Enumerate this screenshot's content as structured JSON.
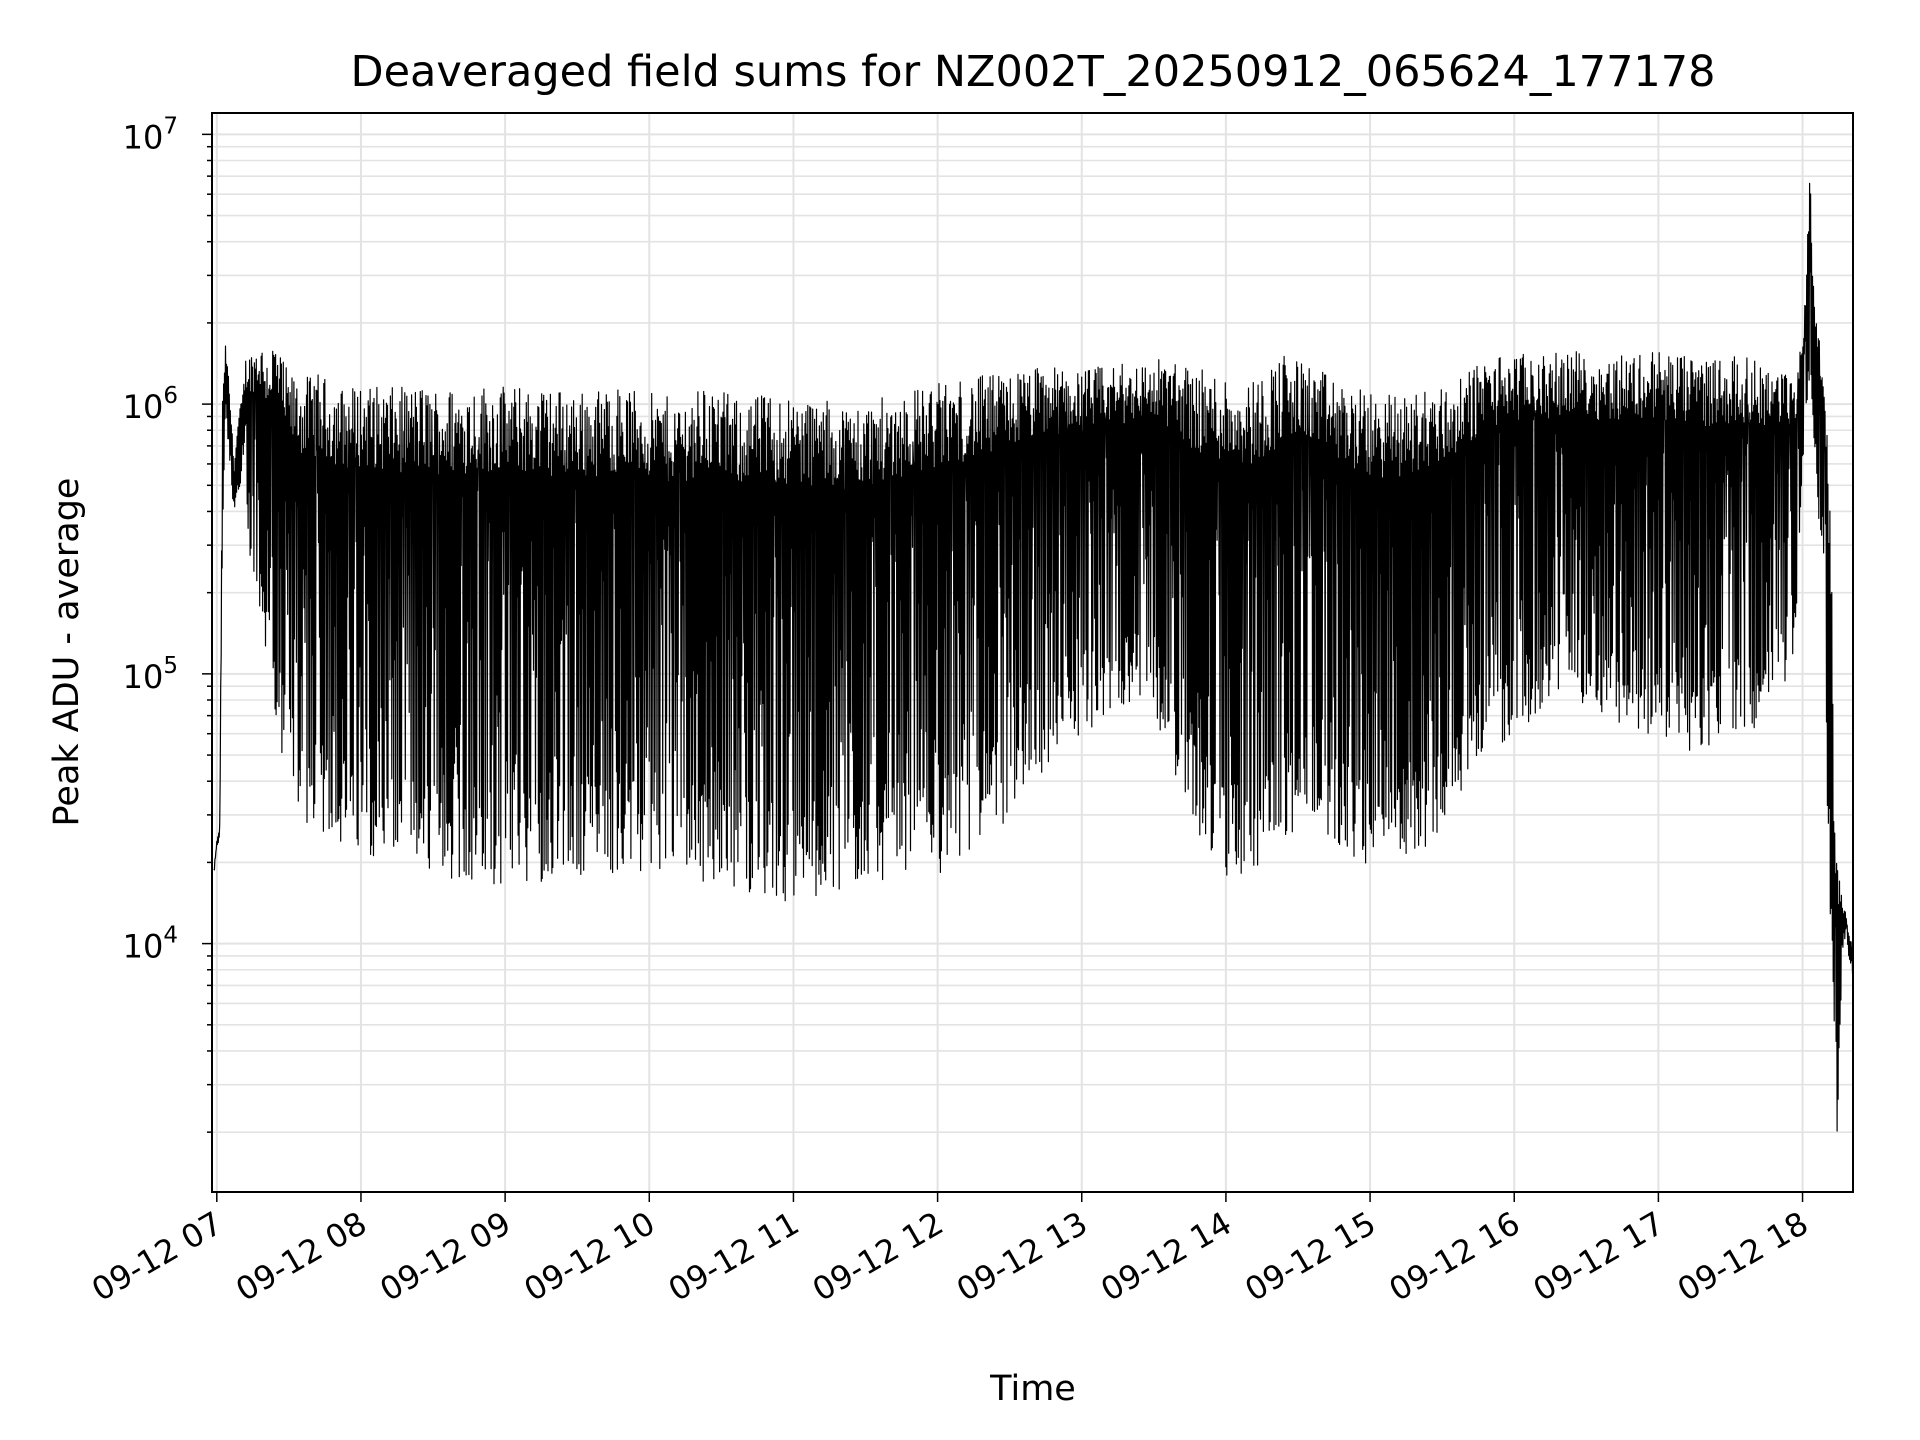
{
  "chart_data": {
    "type": "line",
    "title": "Deaveraged field sums for NZ002T_20250912_065624_177178",
    "xlabel": "Time",
    "ylabel": "Peak ADU - average",
    "yscale": "log",
    "ylim": [
      1200,
      12000000
    ],
    "xlim": [
      "09-12 06:58",
      "09-12 18:21"
    ],
    "grid": true,
    "legend": "none",
    "line_color": "#000000",
    "x_ticks": [
      "09-12 07",
      "09-12 08",
      "09-12 09",
      "09-12 10",
      "09-12 11",
      "09-12 12",
      "09-12 13",
      "09-12 14",
      "09-12 15",
      "09-12 16",
      "09-12 17",
      "09-12 18"
    ],
    "y_ticks": [
      {
        "value": 10000,
        "base": "10",
        "exp": "4"
      },
      {
        "value": 100000,
        "base": "10",
        "exp": "5"
      },
      {
        "value": 1000000,
        "base": "10",
        "exp": "6"
      },
      {
        "value": 10000000,
        "base": "10",
        "exp": "7"
      }
    ],
    "series": [
      {
        "hours": [
          6.98,
          7.0,
          7.02,
          7.04,
          7.06,
          7.08,
          7.1,
          7.12,
          7.15,
          7.18,
          7.2,
          7.25,
          7.3,
          7.35,
          7.4,
          7.45,
          7.5,
          7.6,
          7.7,
          7.8,
          7.9,
          8.0,
          8.2,
          8.4,
          8.6,
          8.8,
          9.0,
          9.2,
          9.4,
          9.6,
          9.8,
          10.0,
          10.2,
          10.4,
          10.6,
          10.8,
          11.0,
          11.2,
          11.4,
          11.6,
          11.8,
          12.0,
          12.2,
          12.4,
          12.6,
          12.8,
          13.0,
          13.2,
          13.4,
          13.6,
          13.8,
          14.0,
          14.2,
          14.4,
          14.6,
          14.8,
          15.0,
          15.2,
          15.4,
          15.6,
          15.8,
          16.0,
          16.2,
          16.4,
          16.6,
          16.8,
          17.0,
          17.2,
          17.4,
          17.6,
          17.8,
          17.95,
          18.0,
          18.02,
          18.05,
          18.08,
          18.12,
          18.16,
          18.2,
          18.22,
          18.24,
          18.26,
          18.28,
          18.3,
          18.32,
          18.35
        ],
        "upper": [
          19000,
          24000,
          27000,
          1050000,
          1650000,
          1300000,
          900000,
          600000,
          900000,
          1100000,
          1500000,
          1600000,
          1750000,
          1550000,
          1800000,
          1500000,
          1300000,
          1250000,
          1300000,
          1200000,
          1150000,
          1200000,
          1150000,
          1180000,
          1150000,
          1200000,
          1180000,
          1150000,
          1150000,
          1120000,
          1180000,
          1100000,
          1050000,
          1200000,
          1050000,
          1100000,
          1080000,
          1050000,
          1000000,
          1050000,
          1150000,
          1200000,
          1250000,
          1300000,
          1350000,
          1400000,
          1350000,
          1400000,
          1450000,
          1500000,
          1350000,
          1300000,
          1250000,
          1550000,
          1400000,
          1200000,
          1100000,
          1100000,
          1150000,
          1200000,
          1500000,
          1550000,
          1500000,
          1600000,
          1500000,
          1550000,
          1600000,
          1500000,
          1500000,
          1500000,
          1400000,
          1250000,
          1800000,
          2600000,
          8000000,
          2500000,
          1800000,
          1200000,
          300000,
          27000,
          20000,
          18000,
          14000,
          13000,
          11000,
          9500
        ],
        "lower": [
          18000,
          22000,
          25000,
          300000,
          1000000,
          650000,
          500000,
          400000,
          450000,
          500000,
          300000,
          200000,
          150000,
          110000,
          70000,
          50000,
          40000,
          28000,
          25000,
          25000,
          22000,
          22000,
          20000,
          17000,
          17000,
          17000,
          16000,
          17000,
          17000,
          18000,
          18000,
          17000,
          17000,
          17000,
          16000,
          15000,
          14000,
          15000,
          16000,
          17000,
          18000,
          18000,
          20000,
          25000,
          35000,
          45000,
          60000,
          70000,
          80000,
          50000,
          25000,
          17000,
          18000,
          22000,
          30000,
          22000,
          18000,
          17000,
          22000,
          35000,
          50000,
          60000,
          70000,
          80000,
          70000,
          60000,
          55000,
          50000,
          55000,
          60000,
          70000,
          120000,
          500000,
          900000,
          1000000,
          700000,
          300000,
          60000,
          8000,
          3000,
          2000,
          4000,
          9000,
          11000,
          9000,
          7500
        ]
      }
    ]
  }
}
